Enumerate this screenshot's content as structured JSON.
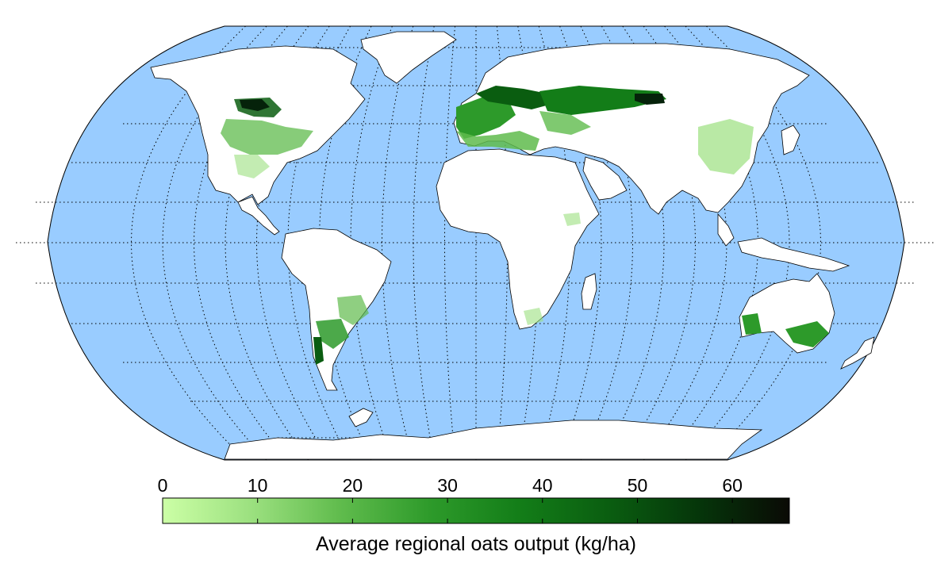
{
  "colors": {
    "ocean": "#99ccff",
    "land": "#ffffff",
    "coast": "#000000",
    "graticule": "#000000",
    "ramp": [
      "#ccffa6",
      "#9be07f",
      "#5fbb4c",
      "#2d9a2a",
      "#137d18",
      "#0a5d10",
      "#05350a",
      "#0a0a05"
    ]
  },
  "map": {
    "projection": "Robinson",
    "graticule": "dotted, 15 degree spacing"
  },
  "colorbar": {
    "title": "Average regional oats output (kg/ha)",
    "min": 0,
    "max": 66,
    "ticks": [
      0,
      10,
      20,
      30,
      40,
      50,
      60
    ],
    "tick_labels": [
      "0",
      "10",
      "20",
      "30",
      "40",
      "50",
      "60"
    ]
  }
}
